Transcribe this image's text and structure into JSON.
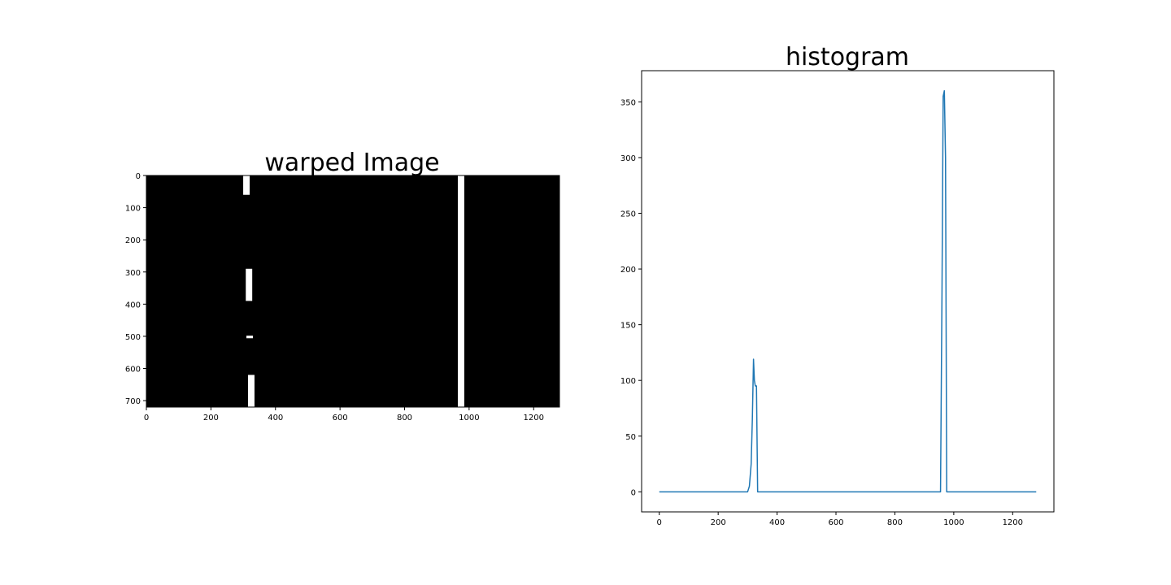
{
  "figure": {
    "background": "#ffffff"
  },
  "chart_data": [
    {
      "type": "heatmap",
      "title": "warped Image",
      "colormap": "gray",
      "image_size": [
        1280,
        720
      ],
      "xlim": [
        0,
        1280
      ],
      "ylim": [
        720,
        0
      ],
      "xticks": [
        0,
        200,
        400,
        600,
        800,
        1000,
        1200
      ],
      "yticks": [
        0,
        100,
        200,
        300,
        400,
        500,
        600,
        700
      ],
      "background_value": 0,
      "lane_pixels": [
        {
          "x_center": 310,
          "y_start": 0,
          "y_end": 60
        },
        {
          "x_center": 318,
          "y_start": 290,
          "y_end": 390
        },
        {
          "x_center": 320,
          "y_start": 498,
          "y_end": 506
        },
        {
          "x_center": 325,
          "y_start": 620,
          "y_end": 720
        },
        {
          "x_center": 975,
          "y_start": 0,
          "y_end": 720
        }
      ]
    },
    {
      "type": "line",
      "title": "histogram",
      "xlim": [
        -60,
        1340
      ],
      "ylim": [
        -18,
        378
      ],
      "xticks": [
        0,
        200,
        400,
        600,
        800,
        1000,
        1200
      ],
      "yticks": [
        0,
        50,
        100,
        150,
        200,
        250,
        300,
        350
      ],
      "color": "#1f77b4",
      "series": [
        {
          "x": [
            0,
            300,
            306,
            312,
            316,
            320,
            323,
            326,
            330,
            334,
            337,
            340,
            516,
            770,
            940,
            955,
            960,
            964,
            968,
            972,
            976,
            980,
            1115,
            1280
          ],
          "y": [
            0,
            0,
            5,
            25,
            65,
            119,
            100,
            95,
            95,
            0,
            0,
            0,
            0,
            0,
            0,
            0,
            180,
            355,
            360,
            300,
            0,
            0,
            0,
            0
          ]
        }
      ]
    }
  ]
}
